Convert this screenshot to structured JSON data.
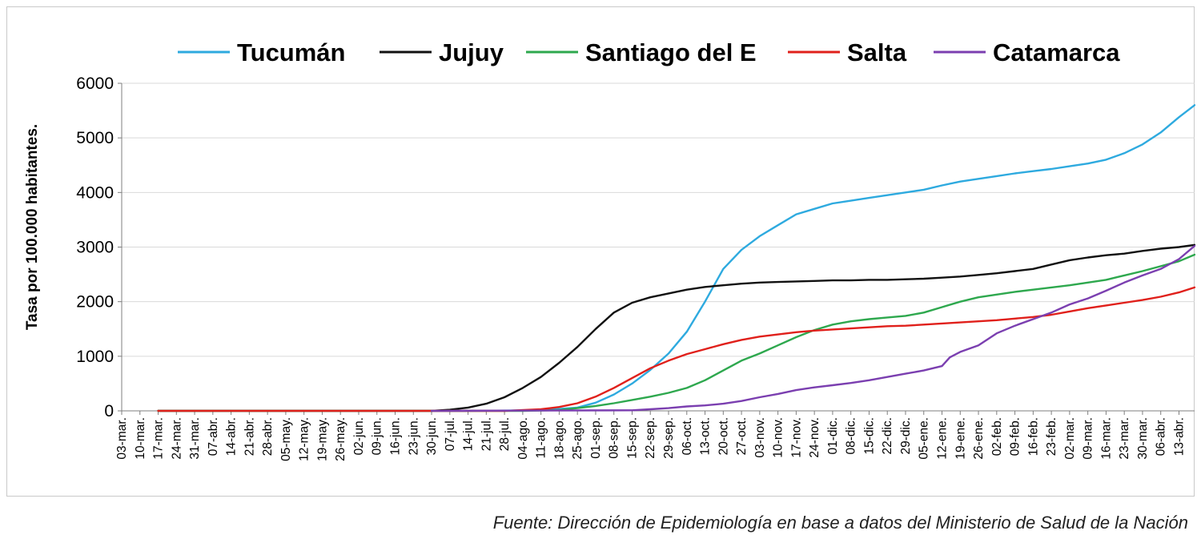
{
  "chart_data": {
    "type": "line",
    "title": "",
    "xlabel": "",
    "ylabel": "Tasa  por 100.000 habitantes.",
    "ylim": [
      0,
      6000
    ],
    "y_ticks": [
      0,
      1000,
      2000,
      3000,
      4000,
      5000,
      6000
    ],
    "grid": true,
    "legend_position": "top",
    "x_start_day": 0,
    "x_end_day": 412,
    "x_ticks": [
      {
        "day": 0,
        "label": "03-mar."
      },
      {
        "day": 7,
        "label": "10-mar."
      },
      {
        "day": 14,
        "label": "17-mar."
      },
      {
        "day": 21,
        "label": "24-mar."
      },
      {
        "day": 28,
        "label": "31-mar."
      },
      {
        "day": 35,
        "label": "07-abr."
      },
      {
        "day": 42,
        "label": "14-abr."
      },
      {
        "day": 49,
        "label": "21-abr."
      },
      {
        "day": 56,
        "label": "28-abr."
      },
      {
        "day": 63,
        "label": "05-may."
      },
      {
        "day": 70,
        "label": "12-may."
      },
      {
        "day": 77,
        "label": "19-may."
      },
      {
        "day": 84,
        "label": "26-may."
      },
      {
        "day": 91,
        "label": "02-jun."
      },
      {
        "day": 98,
        "label": "09-jun."
      },
      {
        "day": 105,
        "label": "16-jun."
      },
      {
        "day": 112,
        "label": "23-jun."
      },
      {
        "day": 119,
        "label": "30-jun."
      },
      {
        "day": 126,
        "label": "07-jul."
      },
      {
        "day": 133,
        "label": "14-jul."
      },
      {
        "day": 140,
        "label": "21-jul."
      },
      {
        "day": 147,
        "label": "28-jul."
      },
      {
        "day": 154,
        "label": "04-ago."
      },
      {
        "day": 161,
        "label": "11-ago."
      },
      {
        "day": 168,
        "label": "18-ago."
      },
      {
        "day": 175,
        "label": "25-ago."
      },
      {
        "day": 182,
        "label": "01-sep."
      },
      {
        "day": 189,
        "label": "08-sep."
      },
      {
        "day": 196,
        "label": "15-sep."
      },
      {
        "day": 203,
        "label": "22-sep."
      },
      {
        "day": 210,
        "label": "29-sep."
      },
      {
        "day": 217,
        "label": "06-oct."
      },
      {
        "day": 224,
        "label": "13-oct."
      },
      {
        "day": 231,
        "label": "20-oct."
      },
      {
        "day": 238,
        "label": "27-oct."
      },
      {
        "day": 245,
        "label": "03-nov."
      },
      {
        "day": 252,
        "label": "10-nov."
      },
      {
        "day": 259,
        "label": "17-nov."
      },
      {
        "day": 266,
        "label": "24-nov."
      },
      {
        "day": 273,
        "label": "01-dic."
      },
      {
        "day": 280,
        "label": "08-dic."
      },
      {
        "day": 287,
        "label": "15-dic."
      },
      {
        "day": 294,
        "label": "22-dic."
      },
      {
        "day": 301,
        "label": "29-dic."
      },
      {
        "day": 308,
        "label": "05-ene."
      },
      {
        "day": 315,
        "label": "12-ene."
      },
      {
        "day": 322,
        "label": "19-ene."
      },
      {
        "day": 329,
        "label": "26-ene."
      },
      {
        "day": 336,
        "label": "02-feb."
      },
      {
        "day": 343,
        "label": "09-feb."
      },
      {
        "day": 350,
        "label": "16-feb."
      },
      {
        "day": 357,
        "label": "23-feb."
      },
      {
        "day": 364,
        "label": "02-mar."
      },
      {
        "day": 371,
        "label": "09-mar."
      },
      {
        "day": 378,
        "label": "16-mar."
      },
      {
        "day": 385,
        "label": "23-mar."
      },
      {
        "day": 392,
        "label": "30-mar."
      },
      {
        "day": 399,
        "label": "06-abr."
      },
      {
        "day": 406,
        "label": "13-abr."
      }
    ],
    "series": [
      {
        "name": "Tucumán",
        "color": "#2eaadf",
        "points": [
          [
            14,
            0
          ],
          [
            133,
            0
          ],
          [
            161,
            10
          ],
          [
            175,
            60
          ],
          [
            182,
            150
          ],
          [
            189,
            300
          ],
          [
            196,
            500
          ],
          [
            203,
            750
          ],
          [
            210,
            1050
          ],
          [
            217,
            1450
          ],
          [
            224,
            2000
          ],
          [
            231,
            2600
          ],
          [
            238,
            2950
          ],
          [
            245,
            3200
          ],
          [
            252,
            3400
          ],
          [
            259,
            3600
          ],
          [
            266,
            3700
          ],
          [
            273,
            3800
          ],
          [
            280,
            3850
          ],
          [
            287,
            3900
          ],
          [
            294,
            3950
          ],
          [
            301,
            4000
          ],
          [
            308,
            4050
          ],
          [
            315,
            4130
          ],
          [
            322,
            4200
          ],
          [
            329,
            4250
          ],
          [
            336,
            4300
          ],
          [
            343,
            4350
          ],
          [
            350,
            4390
          ],
          [
            357,
            4430
          ],
          [
            364,
            4480
          ],
          [
            371,
            4530
          ],
          [
            378,
            4600
          ],
          [
            385,
            4720
          ],
          [
            392,
            4880
          ],
          [
            399,
            5100
          ],
          [
            406,
            5380
          ],
          [
            412,
            5600
          ]
        ]
      },
      {
        "name": "Jujuy",
        "color": "#111111",
        "points": [
          [
            14,
            0
          ],
          [
            119,
            0
          ],
          [
            126,
            20
          ],
          [
            133,
            60
          ],
          [
            140,
            130
          ],
          [
            147,
            250
          ],
          [
            154,
            420
          ],
          [
            161,
            620
          ],
          [
            168,
            880
          ],
          [
            175,
            1170
          ],
          [
            182,
            1500
          ],
          [
            189,
            1800
          ],
          [
            196,
            1980
          ],
          [
            203,
            2080
          ],
          [
            210,
            2150
          ],
          [
            217,
            2220
          ],
          [
            224,
            2270
          ],
          [
            231,
            2300
          ],
          [
            238,
            2330
          ],
          [
            245,
            2350
          ],
          [
            252,
            2360
          ],
          [
            259,
            2370
          ],
          [
            266,
            2380
          ],
          [
            273,
            2390
          ],
          [
            280,
            2390
          ],
          [
            287,
            2400
          ],
          [
            294,
            2400
          ],
          [
            301,
            2410
          ],
          [
            308,
            2420
          ],
          [
            315,
            2440
          ],
          [
            322,
            2460
          ],
          [
            329,
            2490
          ],
          [
            336,
            2520
          ],
          [
            343,
            2560
          ],
          [
            350,
            2600
          ],
          [
            357,
            2680
          ],
          [
            364,
            2760
          ],
          [
            371,
            2810
          ],
          [
            378,
            2850
          ],
          [
            385,
            2880
          ],
          [
            392,
            2930
          ],
          [
            399,
            2970
          ],
          [
            406,
            3000
          ],
          [
            412,
            3040
          ]
        ]
      },
      {
        "name": "Santiago del E",
        "color": "#2ea84e",
        "points": [
          [
            14,
            0
          ],
          [
            154,
            0
          ],
          [
            168,
            15
          ],
          [
            175,
            50
          ],
          [
            182,
            90
          ],
          [
            189,
            140
          ],
          [
            196,
            200
          ],
          [
            203,
            260
          ],
          [
            210,
            330
          ],
          [
            217,
            420
          ],
          [
            224,
            560
          ],
          [
            231,
            740
          ],
          [
            238,
            920
          ],
          [
            245,
            1050
          ],
          [
            252,
            1200
          ],
          [
            259,
            1350
          ],
          [
            266,
            1480
          ],
          [
            273,
            1580
          ],
          [
            280,
            1640
          ],
          [
            287,
            1680
          ],
          [
            294,
            1710
          ],
          [
            301,
            1740
          ],
          [
            308,
            1800
          ],
          [
            315,
            1900
          ],
          [
            322,
            2000
          ],
          [
            329,
            2080
          ],
          [
            336,
            2130
          ],
          [
            343,
            2180
          ],
          [
            350,
            2220
          ],
          [
            357,
            2260
          ],
          [
            364,
            2300
          ],
          [
            371,
            2350
          ],
          [
            378,
            2400
          ],
          [
            385,
            2480
          ],
          [
            392,
            2560
          ],
          [
            399,
            2650
          ],
          [
            406,
            2740
          ],
          [
            412,
            2860
          ]
        ]
      },
      {
        "name": "Salta",
        "color": "#e0201b",
        "points": [
          [
            14,
            0
          ],
          [
            147,
            0
          ],
          [
            161,
            30
          ],
          [
            168,
            70
          ],
          [
            175,
            140
          ],
          [
            182,
            260
          ],
          [
            189,
            420
          ],
          [
            196,
            600
          ],
          [
            203,
            780
          ],
          [
            210,
            920
          ],
          [
            217,
            1040
          ],
          [
            224,
            1130
          ],
          [
            231,
            1220
          ],
          [
            238,
            1300
          ],
          [
            245,
            1360
          ],
          [
            252,
            1400
          ],
          [
            259,
            1440
          ],
          [
            266,
            1470
          ],
          [
            273,
            1490
          ],
          [
            280,
            1510
          ],
          [
            287,
            1530
          ],
          [
            294,
            1550
          ],
          [
            301,
            1560
          ],
          [
            308,
            1580
          ],
          [
            315,
            1600
          ],
          [
            322,
            1620
          ],
          [
            329,
            1640
          ],
          [
            336,
            1660
          ],
          [
            343,
            1690
          ],
          [
            350,
            1720
          ],
          [
            357,
            1760
          ],
          [
            364,
            1820
          ],
          [
            371,
            1880
          ],
          [
            378,
            1930
          ],
          [
            385,
            1980
          ],
          [
            392,
            2030
          ],
          [
            399,
            2090
          ],
          [
            406,
            2170
          ],
          [
            412,
            2260
          ]
        ]
      },
      {
        "name": "Catamarca",
        "color": "#7b3fb0",
        "points": [
          [
            119,
            0
          ],
          [
            196,
            10
          ],
          [
            203,
            30
          ],
          [
            210,
            50
          ],
          [
            217,
            80
          ],
          [
            224,
            100
          ],
          [
            231,
            130
          ],
          [
            238,
            180
          ],
          [
            245,
            250
          ],
          [
            252,
            310
          ],
          [
            259,
            380
          ],
          [
            266,
            430
          ],
          [
            273,
            470
          ],
          [
            280,
            510
          ],
          [
            287,
            560
          ],
          [
            294,
            620
          ],
          [
            301,
            680
          ],
          [
            308,
            740
          ],
          [
            315,
            820
          ],
          [
            318,
            980
          ],
          [
            322,
            1080
          ],
          [
            329,
            1200
          ],
          [
            336,
            1420
          ],
          [
            343,
            1560
          ],
          [
            350,
            1680
          ],
          [
            357,
            1800
          ],
          [
            364,
            1950
          ],
          [
            371,
            2060
          ],
          [
            378,
            2200
          ],
          [
            385,
            2350
          ],
          [
            392,
            2480
          ],
          [
            399,
            2600
          ],
          [
            406,
            2780
          ],
          [
            412,
            3020
          ]
        ]
      }
    ]
  },
  "source_note": "Fuente: Dirección de Epidemiología en base a datos del Ministerio de Salud de la Nación"
}
